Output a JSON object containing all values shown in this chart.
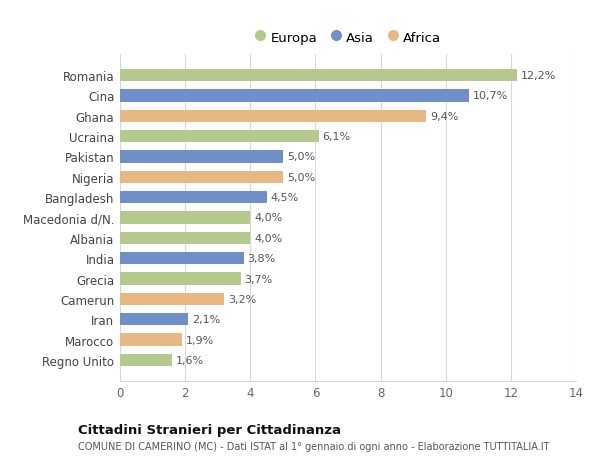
{
  "countries": [
    "Romania",
    "Cina",
    "Ghana",
    "Ucraina",
    "Pakistan",
    "Nigeria",
    "Bangladesh",
    "Macedonia d/N.",
    "Albania",
    "India",
    "Grecia",
    "Camerun",
    "Iran",
    "Marocco",
    "Regno Unito"
  ],
  "values": [
    12.2,
    10.7,
    9.4,
    6.1,
    5.0,
    5.0,
    4.5,
    4.0,
    4.0,
    3.8,
    3.7,
    3.2,
    2.1,
    1.9,
    1.6
  ],
  "labels": [
    "12,2%",
    "10,7%",
    "9,4%",
    "6,1%",
    "5,0%",
    "5,0%",
    "4,5%",
    "4,0%",
    "4,0%",
    "3,8%",
    "3,7%",
    "3,2%",
    "2,1%",
    "1,9%",
    "1,6%"
  ],
  "continents": [
    "Europa",
    "Asia",
    "Africa",
    "Europa",
    "Asia",
    "Africa",
    "Asia",
    "Europa",
    "Europa",
    "Asia",
    "Europa",
    "Africa",
    "Asia",
    "Africa",
    "Europa"
  ],
  "colors": {
    "Europa": "#b5c98e",
    "Asia": "#6e8fc7",
    "Africa": "#e8b882"
  },
  "xlim": [
    0,
    14
  ],
  "xticks": [
    0,
    2,
    4,
    6,
    8,
    10,
    12,
    14
  ],
  "title": "Cittadini Stranieri per Cittadinanza",
  "subtitle": "COMUNE DI CAMERINO (MC) - Dati ISTAT al 1° gennaio di ogni anno - Elaborazione TUTTITALIA.IT",
  "bg_color": "#ffffff",
  "grid_color": "#d8d8d8",
  "bar_height": 0.6
}
